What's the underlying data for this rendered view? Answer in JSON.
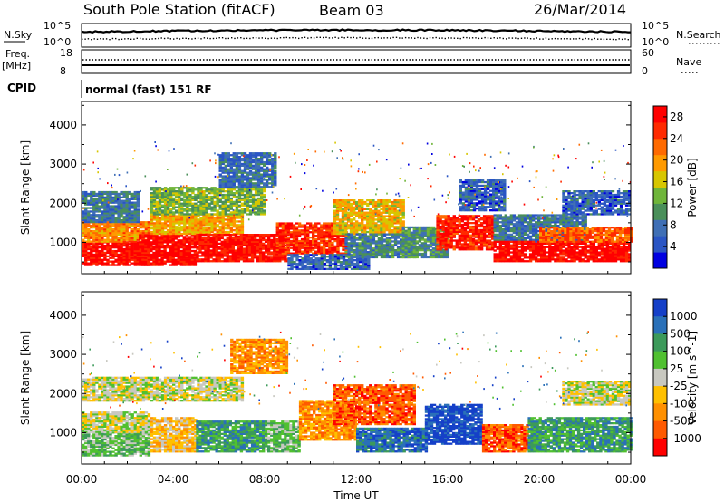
{
  "header": {
    "station": "South Pole Station (fitACF)",
    "beam": "Beam 03",
    "date": "26/Mar/2014"
  },
  "aux_panels": {
    "nsky_label": "N.Sky",
    "nsearch_label": "N.Search",
    "nsky_ticks": [
      "10^5",
      "10^0"
    ],
    "nsearch_ticks": [
      "10^5",
      "10^0"
    ],
    "freq_label_1": "Freq.",
    "freq_label_2": "[MHz]",
    "freq_ticks": [
      "18",
      "8"
    ],
    "nave_label": "Nave",
    "nave_ticks": [
      "60",
      "0"
    ],
    "cpid_label": "CPID",
    "cpid_text": "normal (fast) 151 RF"
  },
  "colors": {
    "power": [
      "#0000e0",
      "#2a55c4",
      "#3f6fb5",
      "#4a8f5a",
      "#6fb53a",
      "#d7c600",
      "#ff9a00",
      "#ff6a00",
      "#ff2a00",
      "#ff0000"
    ],
    "velocity": [
      "#1540c8",
      "#2a70b8",
      "#3c9a5a",
      "#50c030",
      "#c8c8c0",
      "#ffc000",
      "#ff9000",
      "#ff5a00",
      "#ff0000"
    ]
  },
  "chart_data": [
    {
      "type": "heatmap",
      "name": "power",
      "ylabel": "Slant Range [km]",
      "yticks": [
        1000,
        2000,
        3000,
        4000
      ],
      "ylim": [
        200,
        4600
      ],
      "xlim": [
        0,
        24
      ],
      "colorbar_label": "Power [dB]",
      "colorbar_ticks": [
        4,
        8,
        12,
        16,
        20,
        24,
        28
      ],
      "colorbar_range": [
        0,
        30
      ],
      "bands": [
        {
          "t0": 0.0,
          "t1": 3.0,
          "r0": 400,
          "r1": 1000,
          "v": 29
        },
        {
          "t0": 0.0,
          "t1": 3.0,
          "r0": 1000,
          "r1": 1500,
          "v": 21
        },
        {
          "t0": 0.0,
          "t1": 2.5,
          "r0": 1500,
          "r1": 2300,
          "v": 8
        },
        {
          "t0": 2.5,
          "t1": 5.0,
          "r0": 400,
          "r1": 1200,
          "v": 29
        },
        {
          "t0": 3.0,
          "t1": 7.0,
          "r0": 1200,
          "r1": 1700,
          "v": 19
        },
        {
          "t0": 3.0,
          "t1": 8.0,
          "r0": 1700,
          "r1": 2400,
          "v": 13
        },
        {
          "t0": 5.0,
          "t1": 9.0,
          "r0": 500,
          "r1": 1200,
          "v": 28
        },
        {
          "t0": 6.0,
          "t1": 8.5,
          "r0": 2400,
          "r1": 3300,
          "v": 7
        },
        {
          "t0": 8.5,
          "t1": 11.5,
          "r0": 700,
          "r1": 1500,
          "v": 26
        },
        {
          "t0": 9.0,
          "t1": 12.5,
          "r0": 300,
          "r1": 700,
          "v": 6
        },
        {
          "t0": 11.0,
          "t1": 14.0,
          "r0": 1200,
          "r1": 2100,
          "v": 18
        },
        {
          "t0": 11.5,
          "t1": 14.5,
          "r0": 600,
          "r1": 1200,
          "v": 9
        },
        {
          "t0": 14.0,
          "t1": 16.0,
          "r0": 600,
          "r1": 1400,
          "v": 10
        },
        {
          "t0": 15.5,
          "t1": 18.0,
          "r0": 800,
          "r1": 1700,
          "v": 27
        },
        {
          "t0": 16.5,
          "t1": 18.5,
          "r0": 1800,
          "r1": 2600,
          "v": 6
        },
        {
          "t0": 18.0,
          "t1": 22.0,
          "r0": 1000,
          "r1": 1700,
          "v": 8
        },
        {
          "t0": 18.0,
          "t1": 24.0,
          "r0": 500,
          "r1": 1000,
          "v": 29
        },
        {
          "t0": 20.0,
          "t1": 24.0,
          "r0": 1000,
          "r1": 1400,
          "v": 23
        },
        {
          "t0": 21.0,
          "t1": 24.0,
          "r0": 1700,
          "r1": 2300,
          "v": 6
        }
      ]
    },
    {
      "type": "heatmap",
      "name": "velocity",
      "ylabel": "Slant Range [km]",
      "xlabel": "Time UT",
      "yticks": [
        1000,
        2000,
        3000,
        4000
      ],
      "ylim": [
        200,
        4600
      ],
      "xlim": [
        0,
        24
      ],
      "xticks": [
        "00:00",
        "04:00",
        "08:00",
        "12:00",
        "16:00",
        "20:00",
        "00:00"
      ],
      "colorbar_label": "Velocity [m s^-1]",
      "colorbar_ticks": [
        "1000",
        "500",
        "100",
        "25",
        "-25",
        "-100",
        "-500",
        "-1000"
      ],
      "bands": [
        {
          "t0": 0.0,
          "t1": 3.0,
          "r0": 400,
          "r1": 1000,
          "v": 3
        },
        {
          "t0": 0.0,
          "t1": 3.0,
          "r0": 1000,
          "r1": 1500,
          "v": 4
        },
        {
          "t0": 0.0,
          "t1": 3.0,
          "r0": 1800,
          "r1": 2400,
          "v": 4
        },
        {
          "t0": 3.0,
          "t1": 5.0,
          "r0": 500,
          "r1": 1400,
          "v": 5
        },
        {
          "t0": 3.0,
          "t1": 7.0,
          "r0": 1800,
          "r1": 2400,
          "v": 4
        },
        {
          "t0": 5.0,
          "t1": 8.0,
          "r0": 500,
          "r1": 1300,
          "v": 2
        },
        {
          "t0": 8.0,
          "t1": 9.5,
          "r0": 500,
          "r1": 1300,
          "v": 3
        },
        {
          "t0": 9.5,
          "t1": 12.0,
          "r0": 800,
          "r1": 1800,
          "v": 6
        },
        {
          "t0": 11.0,
          "t1": 14.5,
          "r0": 1200,
          "r1": 2200,
          "v": 7
        },
        {
          "t0": 12.0,
          "t1": 15.0,
          "r0": 500,
          "r1": 1100,
          "v": 1
        },
        {
          "t0": 15.0,
          "t1": 17.5,
          "r0": 700,
          "r1": 1700,
          "v": 0
        },
        {
          "t0": 17.5,
          "t1": 19.5,
          "r0": 500,
          "r1": 1200,
          "v": 7
        },
        {
          "t0": 19.5,
          "t1": 24.0,
          "r0": 500,
          "r1": 1400,
          "v": 2
        },
        {
          "t0": 21.0,
          "t1": 24.0,
          "r0": 1700,
          "r1": 2300,
          "v": 4
        },
        {
          "t0": 6.5,
          "t1": 9.0,
          "r0": 2500,
          "r1": 3400,
          "v": 6
        }
      ]
    }
  ]
}
